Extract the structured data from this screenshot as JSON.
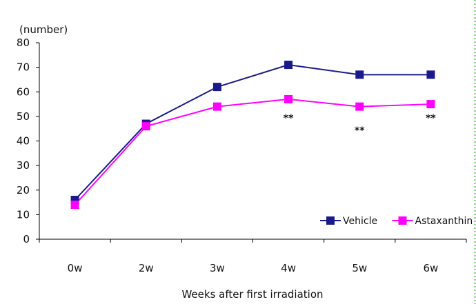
{
  "chart_data": {
    "type": "line",
    "categories": [
      "0w",
      "2w",
      "3w",
      "4w",
      "5w",
      "6w"
    ],
    "series": [
      {
        "name": "Vehicle",
        "color": "#1a1a8c",
        "values": [
          16,
          47,
          62,
          71,
          67,
          67
        ]
      },
      {
        "name": "Astaxanthin",
        "color": "#ff00ff",
        "values": [
          14,
          46,
          54,
          57,
          54,
          55
        ]
      }
    ],
    "ylabel": "(number)",
    "xlabel": "Weeks after first irradiation",
    "ylim": [
      0,
      80
    ],
    "yticks": [
      0,
      10,
      20,
      30,
      40,
      50,
      60,
      70,
      80
    ],
    "grid": false,
    "legend_position": "bottom-right",
    "annotations": [
      {
        "text": "**",
        "category": "4w",
        "value": 48
      },
      {
        "text": "**",
        "category": "5w",
        "value": 43
      },
      {
        "text": "**",
        "category": "6w",
        "value": 48
      }
    ]
  }
}
